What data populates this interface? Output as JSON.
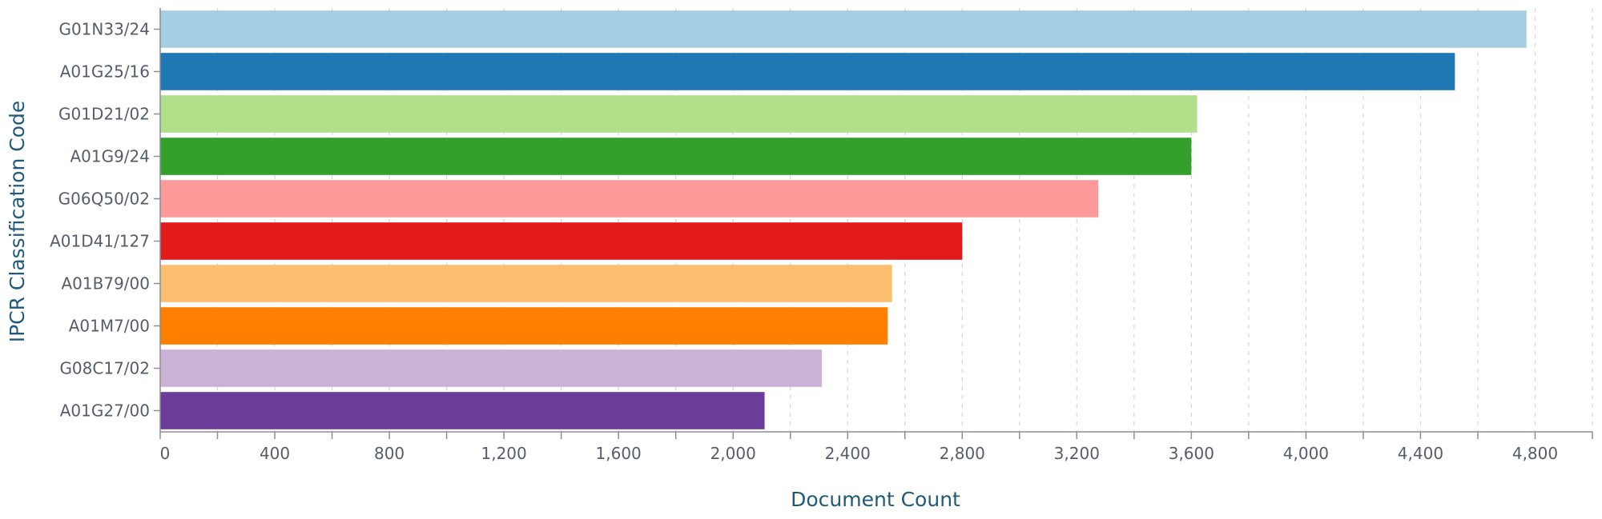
{
  "chart_data": {
    "type": "bar",
    "orientation": "horizontal",
    "xlabel": "Document Count",
    "ylabel": "IPCR Classification Code",
    "xlim": [
      0,
      5000
    ],
    "x_ticks": [
      0,
      400,
      800,
      1200,
      1600,
      2000,
      2400,
      2800,
      3200,
      3600,
      4000,
      4400,
      4800
    ],
    "x_tick_labels": [
      "0",
      "400",
      "800",
      "1,200",
      "1,600",
      "2,000",
      "2,400",
      "2,800",
      "3,200",
      "3,600",
      "4,000",
      "4,400",
      "4,800"
    ],
    "grid": true,
    "categories": [
      "G01N33/24",
      "A01G25/16",
      "G01D21/02",
      "A01G9/24",
      "G06Q50/02",
      "A01D41/127",
      "A01B79/00",
      "A01M7/00",
      "G08C17/02",
      "A01G27/00"
    ],
    "values": [
      4770,
      4520,
      3620,
      3600,
      3275,
      2800,
      2555,
      2540,
      2310,
      2110
    ],
    "colors": [
      "#a6cee3",
      "#1f78b4",
      "#b2df8a",
      "#33a02c",
      "#fb9a99",
      "#e31a1c",
      "#fdbf6f",
      "#ff7f00",
      "#cab2d6",
      "#6a3d9a"
    ]
  }
}
